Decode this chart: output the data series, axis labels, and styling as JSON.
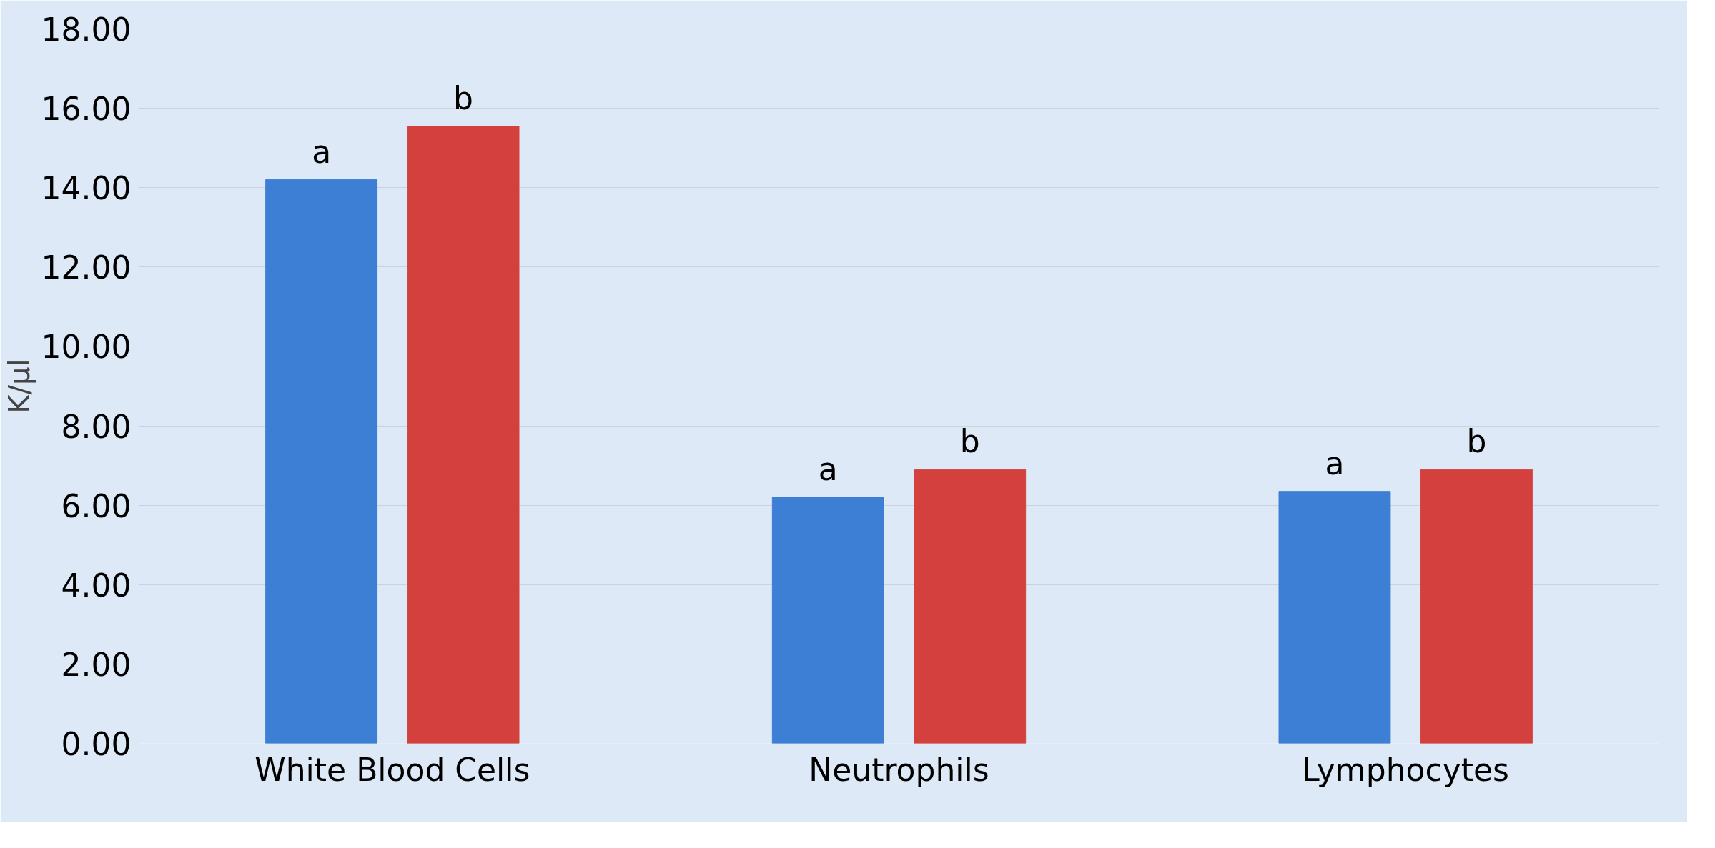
{
  "chart_data": {
    "type": "bar",
    "ylabel": "K/µl",
    "categories": [
      "White Blood Cells",
      "Neutrophils",
      "Lymphocytes"
    ],
    "series": [
      {
        "color": "#3d7fd4",
        "values": [
          14.2,
          6.2,
          6.35
        ],
        "value_labels": [
          "a",
          "a",
          "a"
        ]
      },
      {
        "color": "#d4403d",
        "values": [
          15.55,
          6.9,
          6.9
        ],
        "value_labels": [
          "b",
          "b",
          "b"
        ]
      }
    ],
    "ylim": [
      0,
      18
    ],
    "yticks": [
      {
        "value": 0,
        "label": "0.00"
      },
      {
        "value": 2,
        "label": "2.00"
      },
      {
        "value": 4,
        "label": "4.00"
      },
      {
        "value": 6,
        "label": "6.00"
      },
      {
        "value": 8,
        "label": "8.00"
      },
      {
        "value": 10,
        "label": "10.00"
      },
      {
        "value": 12,
        "label": "12.00"
      },
      {
        "value": 14,
        "label": "14.00"
      },
      {
        "value": 16,
        "label": "16.00"
      },
      {
        "value": 18,
        "label": "18.00"
      }
    ],
    "grid": "y"
  }
}
